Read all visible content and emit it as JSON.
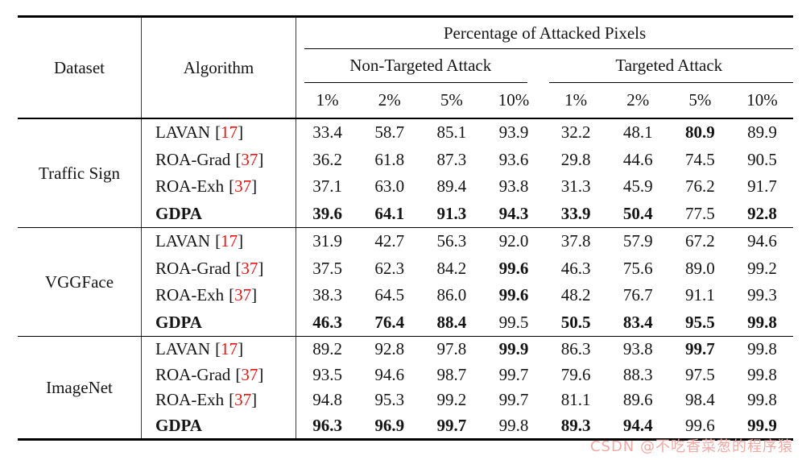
{
  "meta": {
    "cite_open": "[",
    "cite_close": "]"
  },
  "colors": {
    "citation_red": "#ee1111",
    "watermark_pink": "#f0a9a3",
    "bar_gray": "#3a3a3a",
    "rule_black": "#000000"
  },
  "header": {
    "dataset": "Dataset",
    "algorithm": "Algorithm",
    "group_title": "Percentage of Attacked Pixels",
    "subgroup_left": "Non-Targeted Attack",
    "subgroup_right": "Targeted Attack",
    "percents": [
      "1%",
      "2%",
      "5%",
      "10%",
      "1%",
      "2%",
      "5%",
      "10%"
    ]
  },
  "sections": [
    {
      "dataset": "Traffic Sign",
      "rows": [
        {
          "algo": {
            "name": "LAVAN",
            "cite": "17",
            "bold": false
          },
          "values": [
            "33.4",
            "58.7",
            "85.1",
            "93.9",
            "32.2",
            "48.1",
            "80.9",
            "89.9"
          ],
          "bold": [
            false,
            false,
            false,
            false,
            false,
            false,
            true,
            false
          ]
        },
        {
          "algo": {
            "name": "ROA-Grad",
            "cite": "37",
            "bold": false
          },
          "values": [
            "36.2",
            "61.8",
            "87.3",
            "93.6",
            "29.8",
            "44.6",
            "74.5",
            "90.5"
          ],
          "bold": [
            false,
            false,
            false,
            false,
            false,
            false,
            false,
            false
          ]
        },
        {
          "algo": {
            "name": "ROA-Exh",
            "cite": "37",
            "bold": false
          },
          "values": [
            "37.1",
            "63.0",
            "89.4",
            "93.8",
            "31.3",
            "45.9",
            "76.2",
            "91.7"
          ],
          "bold": [
            false,
            false,
            false,
            false,
            false,
            false,
            false,
            false
          ]
        },
        {
          "algo": {
            "name": "GDPA",
            "cite": "",
            "bold": true
          },
          "values": [
            "39.6",
            "64.1",
            "91.3",
            "94.3",
            "33.9",
            "50.4",
            "77.5",
            "92.8"
          ],
          "bold": [
            true,
            true,
            true,
            true,
            true,
            true,
            false,
            true
          ]
        }
      ]
    },
    {
      "dataset": "VGGFace",
      "rows": [
        {
          "algo": {
            "name": "LAVAN",
            "cite": "17",
            "bold": false
          },
          "values": [
            "31.9",
            "42.7",
            "56.3",
            "92.0",
            "37.8",
            "57.9",
            "67.2",
            "94.6"
          ],
          "bold": [
            false,
            false,
            false,
            false,
            false,
            false,
            false,
            false
          ]
        },
        {
          "algo": {
            "name": "ROA-Grad",
            "cite": "37",
            "bold": false
          },
          "values": [
            "37.5",
            "62.3",
            "84.2",
            "99.6",
            "46.3",
            "75.6",
            "89.0",
            "99.2"
          ],
          "bold": [
            false,
            false,
            false,
            true,
            false,
            false,
            false,
            false
          ]
        },
        {
          "algo": {
            "name": "ROA-Exh",
            "cite": "37",
            "bold": false
          },
          "values": [
            "38.3",
            "64.5",
            "86.0",
            "99.6",
            "48.2",
            "76.7",
            "91.1",
            "99.3"
          ],
          "bold": [
            false,
            false,
            false,
            true,
            false,
            false,
            false,
            false
          ]
        },
        {
          "algo": {
            "name": "GDPA",
            "cite": "",
            "bold": true
          },
          "values": [
            "46.3",
            "76.4",
            "88.4",
            "99.5",
            "50.5",
            "83.4",
            "95.5",
            "99.8"
          ],
          "bold": [
            true,
            true,
            true,
            false,
            true,
            true,
            true,
            true
          ]
        }
      ]
    },
    {
      "dataset": "ImageNet",
      "rows": [
        {
          "algo": {
            "name": "LAVAN",
            "cite": "17",
            "bold": false
          },
          "values": [
            "89.2",
            "92.8",
            "97.8",
            "99.9",
            "86.3",
            "93.8",
            "99.7",
            "99.8"
          ],
          "bold": [
            false,
            false,
            false,
            true,
            false,
            false,
            true,
            false
          ]
        },
        {
          "algo": {
            "name": "ROA-Grad",
            "cite": "37",
            "bold": false
          },
          "values": [
            "93.5",
            "94.6",
            "98.7",
            "99.7",
            "79.6",
            "88.3",
            "97.5",
            "99.8"
          ],
          "bold": [
            false,
            false,
            false,
            false,
            false,
            false,
            false,
            false
          ]
        },
        {
          "algo": {
            "name": "ROA-Exh",
            "cite": "37",
            "bold": false
          },
          "values": [
            "94.8",
            "95.3",
            "99.2",
            "99.7",
            "81.1",
            "89.6",
            "98.4",
            "99.8"
          ],
          "bold": [
            false,
            false,
            false,
            false,
            false,
            false,
            false,
            false
          ]
        },
        {
          "algo": {
            "name": "GDPA",
            "cite": "",
            "bold": true
          },
          "values": [
            "96.3",
            "96.9",
            "99.7",
            "99.8",
            "89.3",
            "94.4",
            "99.6",
            "99.9"
          ],
          "bold": [
            true,
            true,
            true,
            false,
            true,
            true,
            false,
            true
          ]
        }
      ]
    }
  ],
  "watermark": "CSDN @不吃香菜葱的程序猿"
}
